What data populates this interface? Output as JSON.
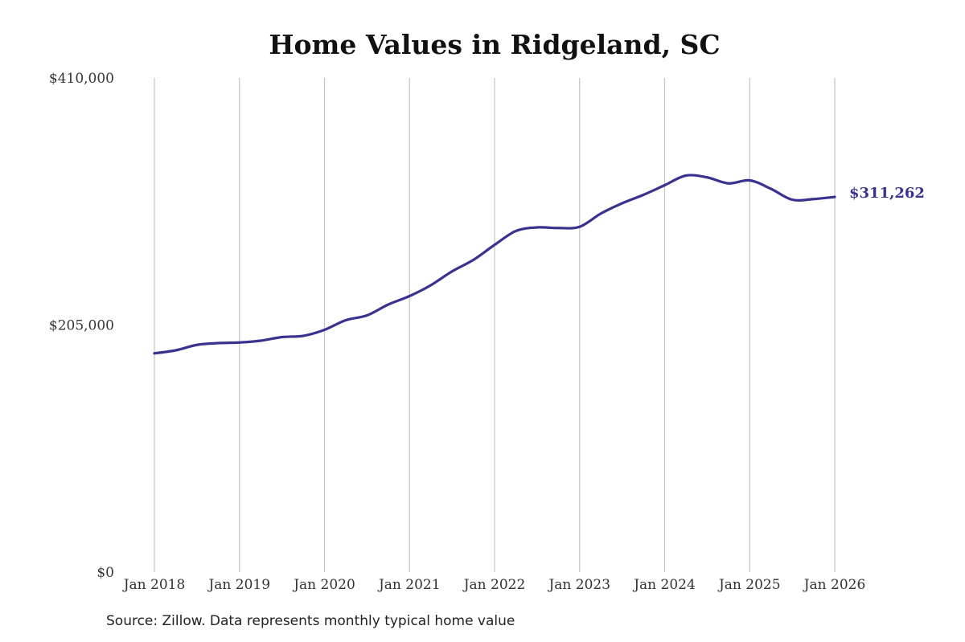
{
  "chart_data": {
    "type": "line",
    "title": "Home Values in Ridgeland, SC",
    "source_note": "Source: Zillow. Data represents monthly typical home value",
    "xlabel": "",
    "ylabel": "",
    "x_ticks": [
      "Jan 2018",
      "Jan 2019",
      "Jan 2020",
      "Jan 2021",
      "Jan 2022",
      "Jan 2023",
      "Jan 2024",
      "Jan 2025",
      "Jan 2026"
    ],
    "y_ticks": [
      "$0",
      "$205,000",
      "$410,000"
    ],
    "ylim": [
      0,
      410000
    ],
    "xlim": [
      "2018-01",
      "2026-01"
    ],
    "grid": "vertical",
    "legend": "none",
    "end_label": "$311,262",
    "line_color": "#3a3290",
    "series": [
      {
        "x": [
          "2018-01",
          "2018-04",
          "2018-07",
          "2018-10",
          "2019-01",
          "2019-04",
          "2019-07",
          "2019-10",
          "2020-01",
          "2020-04",
          "2020-07",
          "2020-10",
          "2021-01",
          "2021-04",
          "2021-07",
          "2021-10",
          "2022-01",
          "2022-04",
          "2022-07",
          "2022-10",
          "2023-01",
          "2023-04",
          "2023-07",
          "2023-10",
          "2024-01",
          "2024-04",
          "2024-07",
          "2024-10",
          "2025-01",
          "2025-04",
          "2025-07",
          "2025-10",
          "2026-01"
        ],
        "values": [
          181500,
          184000,
          188500,
          190000,
          190500,
          192000,
          195000,
          196000,
          201000,
          209000,
          213000,
          222000,
          229000,
          238000,
          249500,
          259000,
          271500,
          283000,
          286000,
          285500,
          286500,
          297500,
          306000,
          313000,
          321000,
          329000,
          327500,
          322500,
          325000,
          318000,
          309000,
          309500,
          311262
        ]
      }
    ]
  }
}
